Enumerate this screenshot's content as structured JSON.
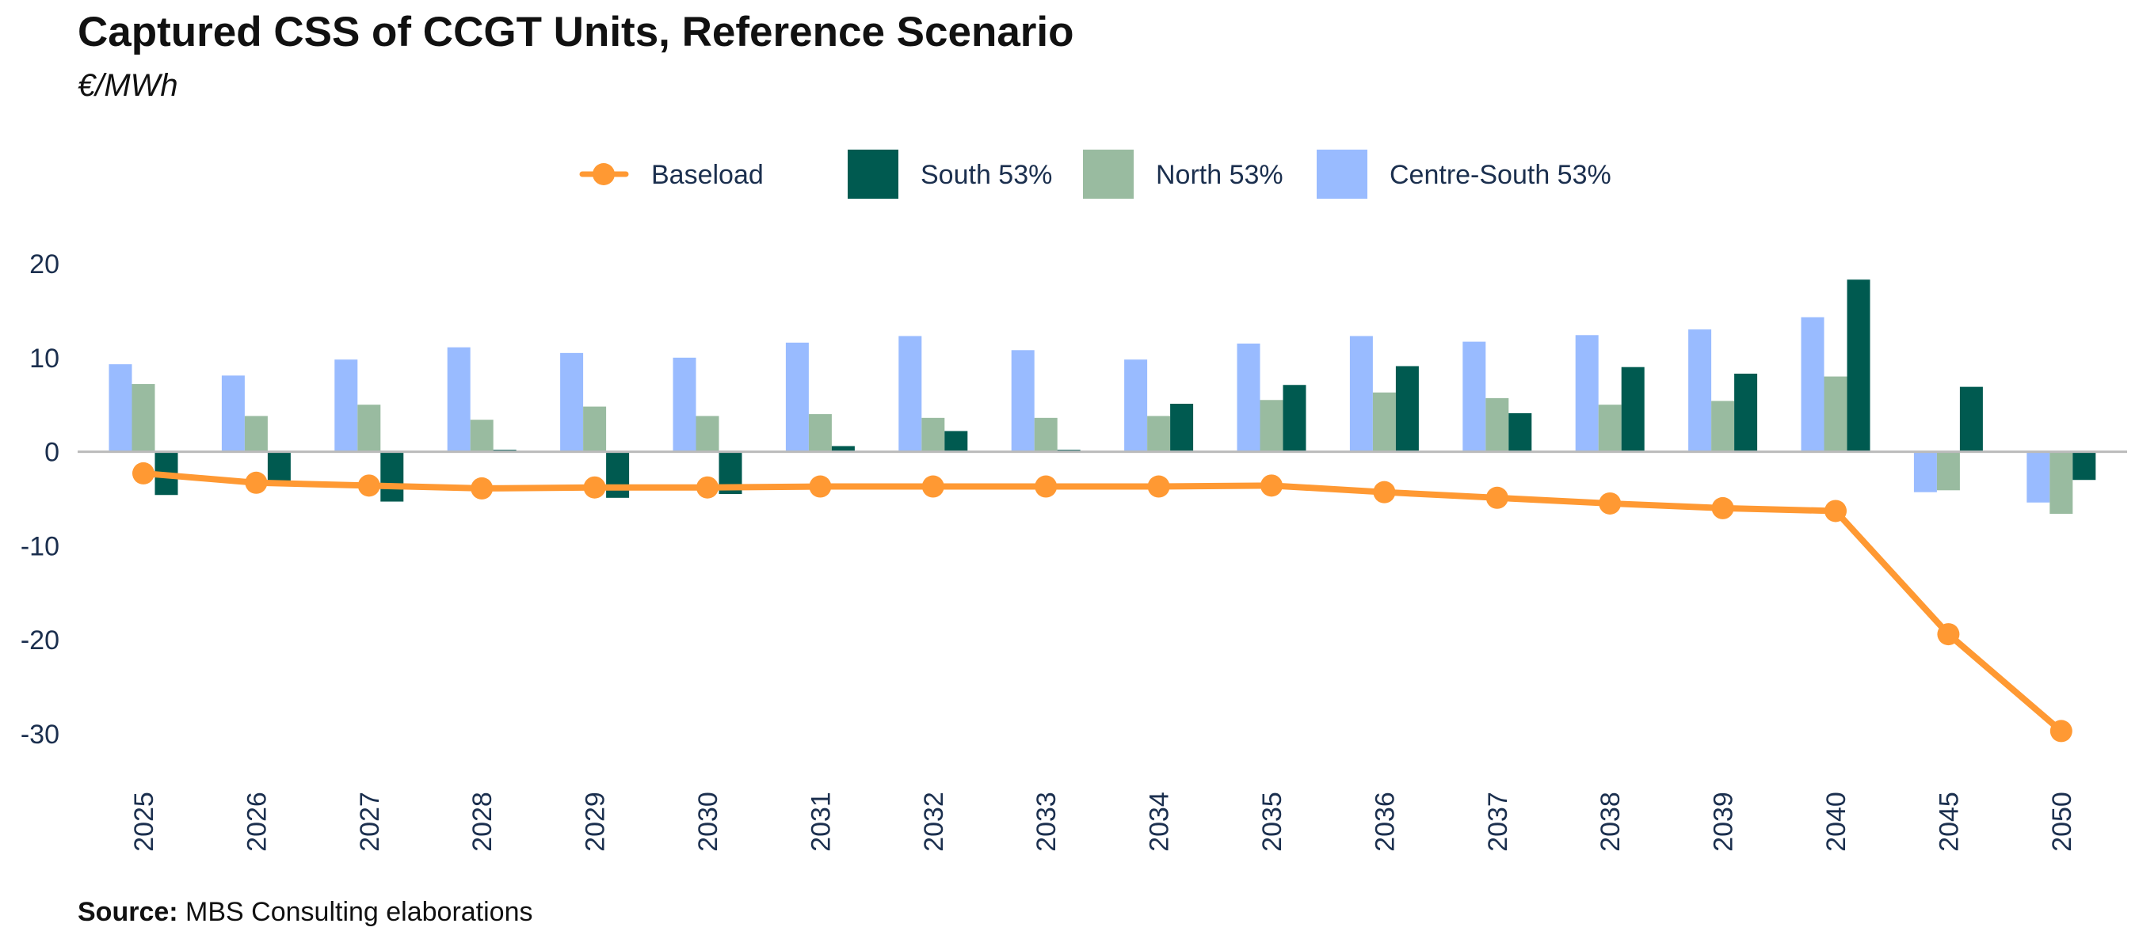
{
  "title": "Captured CSS of CCGT Units, Reference Scenario",
  "subtitle": "€/MWh",
  "source": {
    "label": "Source:",
    "text": " MBS Consulting elaborations"
  },
  "colors": {
    "baseload": "#ff9933",
    "south": "#005a50",
    "north": "#99bba0",
    "centre_south": "#99bbff",
    "axis_text": "#1b2f4e",
    "zero_line": "#bbbbbb"
  },
  "chart_data": {
    "type": "bar",
    "title": "Captured CSS of CCGT Units, Reference Scenario",
    "subtitle": "€/MWh",
    "xlabel": "",
    "ylabel": "",
    "ylim": [
      -30,
      20
    ],
    "yticks": [
      20,
      10,
      0,
      -10,
      -20,
      -30
    ],
    "grid": false,
    "legend_position": "top-center",
    "categories": [
      "2025",
      "2026",
      "2027",
      "2028",
      "2029",
      "2030",
      "2031",
      "2032",
      "2033",
      "2034",
      "2035",
      "2036",
      "2037",
      "2038",
      "2039",
      "2040",
      "2045",
      "2050"
    ],
    "series": [
      {
        "name": "Baseload",
        "type": "line",
        "color": "#ff9933",
        "values": [
          -2.3,
          -3.3,
          -3.6,
          -3.9,
          -3.8,
          -3.8,
          -3.7,
          -3.7,
          -3.7,
          -3.7,
          -3.6,
          -4.3,
          -4.9,
          -5.5,
          -6.0,
          -6.3,
          -19.4,
          -29.7
        ]
      },
      {
        "name": "South 53%",
        "type": "bar",
        "color": "#005a50",
        "values": [
          -4.6,
          -3.6,
          -5.3,
          0.2,
          -4.9,
          -4.5,
          0.6,
          2.2,
          0.2,
          5.1,
          7.1,
          9.1,
          4.1,
          9.0,
          8.3,
          18.3,
          6.9,
          -3.0
        ]
      },
      {
        "name": "North 53%",
        "type": "bar",
        "color": "#99bba0",
        "values": [
          7.2,
          3.8,
          5.0,
          3.4,
          4.8,
          3.8,
          4.0,
          3.6,
          3.6,
          3.8,
          5.5,
          6.3,
          5.7,
          5.0,
          5.4,
          8.0,
          -4.1,
          -6.6
        ]
      },
      {
        "name": "Centre-South 53%",
        "type": "bar",
        "color": "#99bbff",
        "values": [
          9.3,
          8.1,
          9.8,
          11.1,
          10.5,
          10.0,
          11.6,
          12.3,
          10.8,
          9.8,
          11.5,
          12.3,
          11.7,
          12.4,
          13.0,
          14.3,
          -4.3,
          -5.4
        ]
      }
    ]
  }
}
